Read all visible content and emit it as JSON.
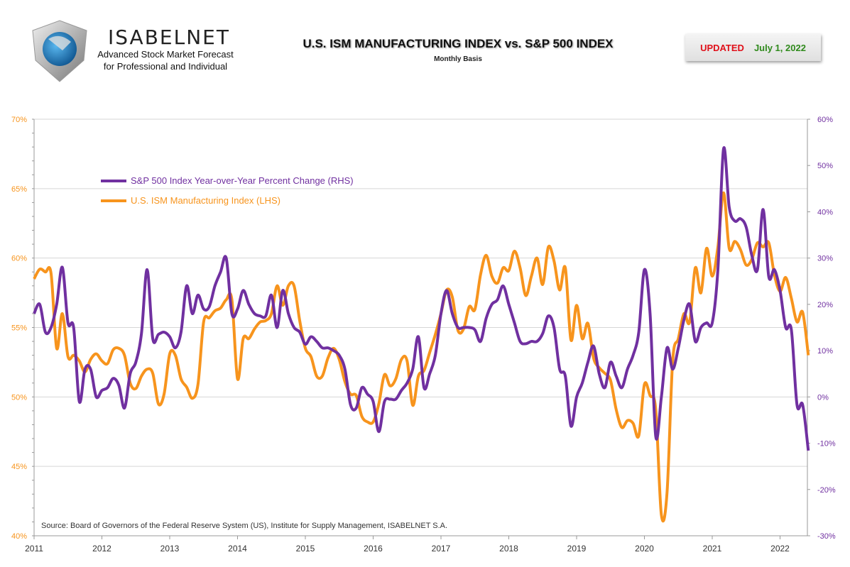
{
  "header": {
    "logo_name": "ISABELNET",
    "logo_tagline_1": "Advanced Stock Market Forecast",
    "logo_tagline_2": "for Professional and Individual",
    "title": "U.S. ISM MANUFACTURING INDEX vs. S&P 500 INDEX",
    "subtitle": "Monthly Basis",
    "updated_label": "UPDATED",
    "updated_date": "July 1, 2022"
  },
  "chart_data": {
    "type": "line",
    "title": "U.S. ISM MANUFACTURING INDEX vs. S&P 500 INDEX",
    "subtitle": "Monthly Basis",
    "x_start": "2011-01",
    "x_end": "2022-06",
    "frequency": "monthly",
    "x_ticks": [
      "2011",
      "2012",
      "2013",
      "2014",
      "2015",
      "2016",
      "2017",
      "2018",
      "2019",
      "2020",
      "2021",
      "2022"
    ],
    "y_left": {
      "range": [
        40,
        70
      ],
      "ticks": [
        "40%",
        "45%",
        "50%",
        "55%",
        "60%",
        "65%",
        "70%"
      ],
      "color": "#f7941d"
    },
    "y_right": {
      "range": [
        -30,
        60
      ],
      "ticks": [
        "-30%",
        "-20%",
        "-10%",
        "0%",
        "10%",
        "20%",
        "30%",
        "40%",
        "50%",
        "60%"
      ],
      "color": "#7030a0"
    },
    "grid": true,
    "legend_position": "top-left",
    "series": [
      {
        "name": "S&P 500 Index Year-over-Year Percent Change (RHS)",
        "axis": "right",
        "color": "#7030a0",
        "values": [
          18,
          20,
          14,
          15,
          20,
          28,
          16,
          15,
          -1,
          6,
          6,
          0,
          1.4,
          2,
          4,
          2.5,
          -2.4,
          5,
          7.5,
          13.7,
          27.5,
          12.6,
          13.5,
          14,
          13,
          10.6,
          14,
          24,
          18,
          22,
          19,
          19.5,
          24,
          27,
          30,
          18,
          19,
          23,
          20,
          18,
          17.5,
          17.5,
          22,
          15,
          23,
          18,
          15,
          14,
          11.4,
          13,
          12,
          10.6,
          10.6,
          10,
          9,
          6,
          -1.7,
          -2.4,
          2,
          0.6,
          -1,
          -7.5,
          -1,
          -0.5,
          -0.5,
          1.4,
          3,
          6,
          13,
          2,
          5,
          9,
          18,
          23,
          18,
          15,
          15,
          15,
          14.5,
          12,
          17,
          20,
          21,
          24,
          20,
          16,
          12,
          11.5,
          12,
          12,
          13.7,
          17.5,
          15,
          6,
          4.5,
          -6.3,
          0,
          3,
          7.5,
          11,
          5,
          2,
          7.5,
          4.5,
          2,
          6,
          9,
          14,
          27.5,
          18,
          -8.5,
          0,
          10.6,
          6,
          10.6,
          16.7,
          20,
          12,
          15,
          16,
          16,
          27.5,
          53.6,
          41,
          38,
          38.5,
          36.7,
          30.6,
          27.5,
          40.5,
          26,
          27.5,
          23,
          15,
          14.5,
          -1.7,
          -1.7,
          -11.6
        ]
      },
      {
        "name": "U.S. ISM Manufacturing Index (LHS)",
        "axis": "left",
        "color": "#f7941d",
        "values": [
          58.5,
          59.2,
          59.0,
          58.9,
          53.5,
          56.0,
          52.9,
          53.0,
          52.6,
          51.8,
          52.7,
          53.1,
          52.6,
          52.4,
          53.4,
          53.5,
          53.0,
          51.0,
          50.6,
          51.5,
          52.0,
          51.7,
          49.5,
          50.2,
          53.1,
          53.0,
          51.3,
          50.7,
          49.9,
          50.9,
          55.4,
          55.7,
          56.2,
          56.4,
          57.0,
          57.0,
          51.3,
          54.2,
          54.2,
          54.9,
          55.4,
          55.5,
          56.0,
          58.0,
          56.6,
          58.0,
          58.0,
          55.5,
          53.5,
          52.9,
          51.5,
          51.5,
          52.8,
          53.5,
          52.7,
          51.1,
          50.2,
          50.1,
          48.6,
          48.2,
          48.2,
          49.5,
          51.6,
          50.8,
          51.3,
          52.7,
          52.6,
          49.4,
          51.5,
          51.9,
          53.2,
          54.5,
          56.0,
          57.7,
          57.2,
          54.8,
          54.9,
          56.5,
          56.3,
          58.8,
          60.2,
          58.7,
          58.2,
          59.3,
          59.1,
          60.5,
          59.3,
          57.3,
          58.7,
          60.0,
          58.1,
          60.8,
          59.8,
          57.7,
          59.3,
          54.1,
          56.6,
          54.2,
          55.3,
          52.8,
          52.1,
          51.7,
          51.2,
          49.1,
          47.8,
          48.3,
          48.1,
          47.2,
          50.9,
          50.1,
          49.1,
          41.5,
          43.1,
          52.6,
          54.2,
          56.0,
          55.4,
          59.3,
          57.5,
          60.7,
          58.7,
          60.8,
          64.7,
          60.7,
          61.2,
          60.6,
          59.5,
          59.9,
          61.1,
          60.8,
          61.1,
          58.8,
          57.6,
          58.6,
          57.1,
          55.4,
          56.1,
          53.0
        ]
      }
    ],
    "source": "Source: Board of Governors of the Federal Reserve System (US), Institute for Supply Management, ISABELNET S.A."
  }
}
